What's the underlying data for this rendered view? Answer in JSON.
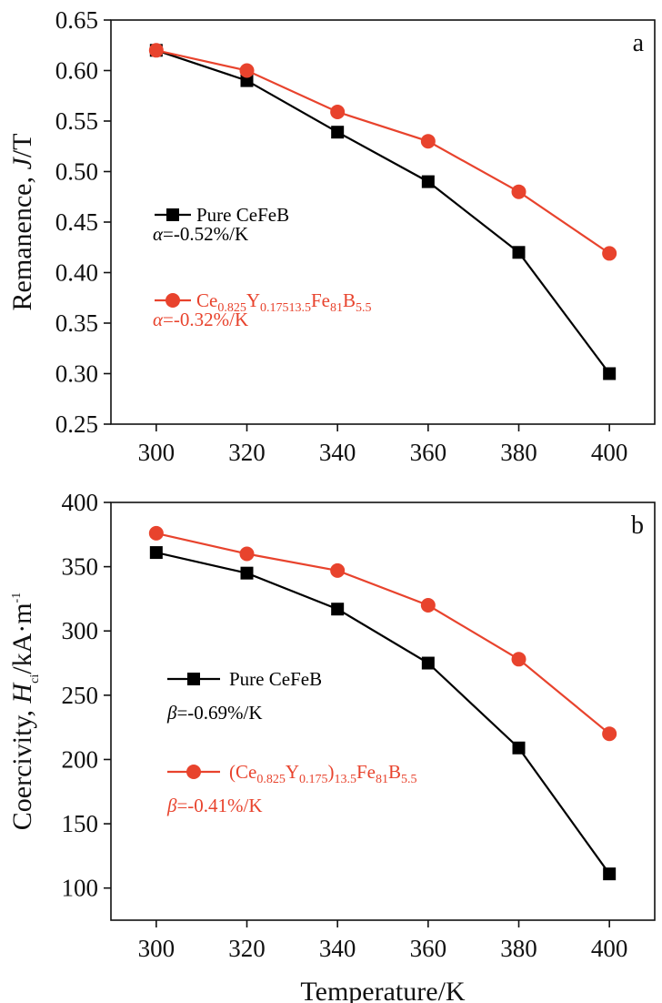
{
  "chart_data": [
    {
      "type": "line",
      "panel_label": "a",
      "xlabel": "",
      "ylabel": "Remanence, J/T",
      "ylabel_parts": {
        "lead": "Remanence, ",
        "symbol": "J",
        "unit": "/T"
      },
      "xlim": [
        290,
        410
      ],
      "ylim": [
        0.25,
        0.65
      ],
      "x_ticks": [
        "300",
        "320",
        "340",
        "360",
        "380",
        "400"
      ],
      "y_ticks": [
        "0.25",
        "0.30",
        "0.35",
        "0.40",
        "0.45",
        "0.50",
        "0.55",
        "0.60",
        "0.65"
      ],
      "grid": false,
      "legend_position": "middle-left",
      "x": [
        300,
        320,
        340,
        360,
        380,
        400
      ],
      "series": [
        {
          "name": "Pure CeFeB",
          "marker": "square",
          "color": "#000000",
          "values": [
            0.62,
            0.59,
            0.539,
            0.49,
            0.42,
            0.3
          ]
        },
        {
          "name": "Ce0.825Y0.17513.5Fe81B5.5",
          "marker": "circle",
          "color": "#e8432d",
          "values": [
            0.62,
            0.6,
            0.559,
            0.53,
            0.48,
            0.419
          ]
        }
      ],
      "legend": [
        {
          "label_parts": [
            [
              "Pure CeFeB",
              "n"
            ]
          ],
          "color": "#000000",
          "marker": "square",
          "annotation_symbol": "α",
          "annotation_value": "=-0.52%/K"
        },
        {
          "label_parts": [
            [
              "Ce",
              "n"
            ],
            [
              "0.825",
              "s"
            ],
            [
              "Y",
              "n"
            ],
            [
              "0.17513.5",
              "s"
            ],
            [
              "Fe",
              "n"
            ],
            [
              "81",
              "s"
            ],
            [
              "B",
              "n"
            ],
            [
              "5.5",
              "s"
            ]
          ],
          "color": "#e8432d",
          "marker": "circle",
          "annotation_symbol": "α",
          "annotation_value": "=-0.32%/K"
        }
      ]
    },
    {
      "type": "line",
      "panel_label": "b",
      "xlabel": "Temperature/K",
      "ylabel": "Coercivity, Hci/kA·m-1",
      "ylabel_parts": {
        "lead": "Coercivity, ",
        "symbol": "H",
        "symbol_sub": "ci",
        "unit": "/kA·m",
        "unit_sup": "-1"
      },
      "xlim": [
        290,
        410
      ],
      "ylim": [
        75,
        400
      ],
      "x_ticks": [
        "300",
        "320",
        "340",
        "360",
        "380",
        "400"
      ],
      "y_ticks": [
        "100",
        "150",
        "200",
        "250",
        "300",
        "350",
        "400"
      ],
      "grid": false,
      "legend_position": "middle-left",
      "x": [
        300,
        320,
        340,
        360,
        380,
        400
      ],
      "series": [
        {
          "name": "Pure CeFeB",
          "marker": "square",
          "color": "#000000",
          "values": [
            361,
            345,
            317,
            275,
            209,
            111
          ]
        },
        {
          "name": "(Ce0.825Y0.175)13.5Fe81B5.5",
          "marker": "circle",
          "color": "#e8432d",
          "values": [
            376,
            360,
            347,
            320,
            278,
            220
          ]
        }
      ],
      "legend": [
        {
          "label_parts": [
            [
              "Pure CeFeB",
              "n"
            ]
          ],
          "color": "#000000",
          "marker": "square",
          "annotation_symbol": "β",
          "annotation_value": "=-0.69%/K"
        },
        {
          "label_parts": [
            [
              "(Ce",
              "n"
            ],
            [
              "0.825",
              "s"
            ],
            [
              "Y",
              "n"
            ],
            [
              "0.175",
              "s"
            ],
            [
              ")",
              "n"
            ],
            [
              "13.5",
              "s"
            ],
            [
              "Fe",
              "n"
            ],
            [
              "81",
              "s"
            ],
            [
              "B",
              "n"
            ],
            [
              "5.5",
              "s"
            ]
          ],
          "color": "#e8432d",
          "marker": "circle",
          "annotation_symbol": "β",
          "annotation_value": "=-0.41%/K"
        }
      ]
    }
  ]
}
